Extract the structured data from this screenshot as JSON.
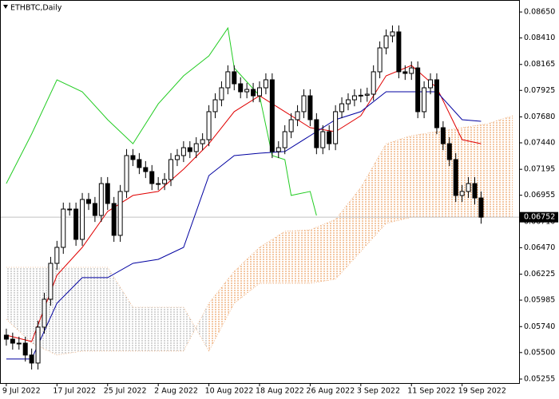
{
  "chart_data": {
    "type": "candlestick",
    "title": "ETHBTC,Daily",
    "x": [
      "2022-07-09",
      "2022-07-10",
      "2022-07-11",
      "2022-07-12",
      "2022-07-13",
      "2022-07-14",
      "2022-07-15",
      "2022-07-16",
      "2022-07-17",
      "2022-07-18",
      "2022-07-19",
      "2022-07-20",
      "2022-07-21",
      "2022-07-22",
      "2022-07-23",
      "2022-07-24",
      "2022-07-25",
      "2022-07-26",
      "2022-07-27",
      "2022-07-28",
      "2022-07-29",
      "2022-07-30",
      "2022-07-31",
      "2022-08-01",
      "2022-08-02",
      "2022-08-03",
      "2022-08-04",
      "2022-08-05",
      "2022-08-06",
      "2022-08-07",
      "2022-08-08",
      "2022-08-09",
      "2022-08-10",
      "2022-08-11",
      "2022-08-12",
      "2022-08-13",
      "2022-08-14",
      "2022-08-15",
      "2022-08-16",
      "2022-08-17",
      "2022-08-18",
      "2022-08-19",
      "2022-08-20",
      "2022-08-21",
      "2022-08-22",
      "2022-08-23",
      "2022-08-24",
      "2022-08-25",
      "2022-08-26",
      "2022-08-27",
      "2022-08-28",
      "2022-08-29",
      "2022-08-30",
      "2022-08-31",
      "2022-09-01",
      "2022-09-02",
      "2022-09-03",
      "2022-09-04",
      "2022-09-05",
      "2022-09-06",
      "2022-09-07",
      "2022-09-08",
      "2022-09-09",
      "2022-09-10",
      "2022-09-11",
      "2022-09-12",
      "2022-09-13",
      "2022-09-14",
      "2022-09-15",
      "2022-09-16",
      "2022-09-17",
      "2022-09-18",
      "2022-09-19",
      "2022-09-20",
      "2022-09-21",
      "2022-09-22"
    ],
    "open": [
      0.05661,
      0.05624,
      0.05587,
      0.05587,
      0.05477,
      0.05403,
      0.05735,
      0.05993,
      0.06325,
      0.06473,
      0.06827,
      0.06827,
      0.06547,
      0.06916,
      0.06879,
      0.06768,
      0.07063,
      0.06879,
      0.06584,
      0.0699,
      0.07322,
      0.07285,
      0.07211,
      0.07174,
      0.07063,
      0.07063,
      0.071,
      0.07285,
      0.07322,
      0.07395,
      0.07359,
      0.07432,
      0.07469,
      0.07728,
      0.07838,
      0.07949,
      0.08097,
      0.07986,
      0.07912,
      0.07934,
      0.07875,
      0.07949,
      0.08023,
      0.07359,
      0.07395,
      0.07543,
      0.07654,
      0.07728,
      0.07875,
      0.07654,
      0.07395,
      0.07543,
      0.07432,
      0.07728,
      0.07801,
      0.07838,
      0.07875,
      0.0788,
      0.0789,
      0.08097,
      0.08318,
      0.08429,
      0.08466,
      0.08097,
      0.08082,
      0.08133,
      0.07728,
      0.07949,
      0.08023,
      0.0758,
      0.07432,
      0.07285,
      0.06953,
      0.0699,
      0.07063,
      0.0693
    ],
    "high": [
      0.05721,
      0.05684,
      0.05647,
      0.05647,
      0.05537,
      0.05795,
      0.06053,
      0.06385,
      0.06533,
      0.06887,
      0.06887,
      0.06887,
      0.06976,
      0.06976,
      0.06939,
      0.07123,
      0.07123,
      0.06939,
      0.0705,
      0.07382,
      0.07382,
      0.07345,
      0.07271,
      0.07234,
      0.07123,
      0.0716,
      0.07345,
      0.07382,
      0.07455,
      0.07455,
      0.07492,
      0.07529,
      0.07788,
      0.07898,
      0.08009,
      0.08157,
      0.08157,
      0.08046,
      0.07994,
      0.07994,
      0.08009,
      0.08083,
      0.08083,
      0.07455,
      0.07603,
      0.07714,
      0.07788,
      0.07935,
      0.07935,
      0.07714,
      0.07603,
      0.07603,
      0.07788,
      0.07861,
      0.07898,
      0.07935,
      0.0794,
      0.0795,
      0.08157,
      0.08378,
      0.08489,
      0.08526,
      0.08526,
      0.08157,
      0.08193,
      0.08193,
      0.08009,
      0.08083,
      0.08083,
      0.0764,
      0.07492,
      0.07345,
      0.0705,
      0.07123,
      0.07123,
      0.0699
    ],
    "low": [
      0.05564,
      0.05527,
      0.05527,
      0.05417,
      0.05343,
      0.05343,
      0.05675,
      0.05933,
      0.06265,
      0.06413,
      0.06767,
      0.06487,
      0.06487,
      0.06819,
      0.06708,
      0.06708,
      0.06819,
      0.06524,
      0.06524,
      0.0693,
      0.07225,
      0.07151,
      0.07114,
      0.07003,
      0.07003,
      0.07003,
      0.0704,
      0.07225,
      0.07262,
      0.07299,
      0.07299,
      0.07372,
      0.07409,
      0.07668,
      0.07778,
      0.07889,
      0.07926,
      0.07852,
      0.07852,
      0.07815,
      0.07815,
      0.07889,
      0.07299,
      0.07299,
      0.07335,
      0.07483,
      0.07594,
      0.07668,
      0.07594,
      0.07335,
      0.07335,
      0.07372,
      0.07372,
      0.07668,
      0.07741,
      0.07778,
      0.07815,
      0.0782,
      0.0783,
      0.08037,
      0.08258,
      0.08369,
      0.08037,
      0.08022,
      0.08022,
      0.07668,
      0.07668,
      0.07889,
      0.0752,
      0.07372,
      0.07225,
      0.06893,
      0.06893,
      0.0693,
      0.0687,
      0.06692
    ],
    "close": [
      0.05624,
      0.05587,
      0.05587,
      0.05477,
      0.05403,
      0.05735,
      0.05993,
      0.06325,
      0.06473,
      0.06827,
      0.06827,
      0.06547,
      0.06916,
      0.06879,
      0.06768,
      0.07063,
      0.06879,
      0.06584,
      0.0699,
      0.07322,
      0.07285,
      0.07211,
      0.07174,
      0.07063,
      0.07063,
      0.071,
      0.07285,
      0.07322,
      0.07395,
      0.07359,
      0.07432,
      0.07469,
      0.07728,
      0.07838,
      0.07949,
      0.08097,
      0.07986,
      0.07912,
      0.07934,
      0.07875,
      0.07949,
      0.08023,
      0.07359,
      0.07395,
      0.07543,
      0.07654,
      0.07728,
      0.07875,
      0.07654,
      0.07395,
      0.07543,
      0.07432,
      0.07728,
      0.07801,
      0.07838,
      0.07875,
      0.0788,
      0.0789,
      0.08097,
      0.08318,
      0.08429,
      0.08466,
      0.08097,
      0.08082,
      0.08133,
      0.07728,
      0.07949,
      0.08023,
      0.0758,
      0.07432,
      0.07285,
      0.06953,
      0.0699,
      0.07063,
      0.0693,
      0.06752
    ],
    "up_color": "#ffffff",
    "down_color": "#000000",
    "lines": [
      {
        "color": "#e00000",
        "x": [
          "2022-07-09",
          "2022-07-13",
          "2022-07-17",
          "2022-07-21",
          "2022-07-25",
          "2022-07-29",
          "2022-08-02",
          "2022-08-06",
          "2022-08-10",
          "2022-08-14",
          "2022-08-18",
          "2022-08-22",
          "2022-08-26",
          "2022-08-30",
          "2022-09-03",
          "2022-09-07",
          "2022-09-11",
          "2022-09-15",
          "2022-09-19",
          "2022-09-22"
        ],
        "values": [
          0.05661,
          0.05602,
          0.06215,
          0.06473,
          0.06805,
          0.06953,
          0.0699,
          0.07196,
          0.07432,
          0.07728,
          0.07875,
          0.07728,
          0.0758,
          0.07543,
          0.07691,
          0.0806,
          0.08156,
          0.07949,
          0.07469,
          0.07432
        ]
      },
      {
        "color": "#0000a0",
        "x": [
          "2022-07-09",
          "2022-07-13",
          "2022-07-17",
          "2022-07-21",
          "2022-07-25",
          "2022-07-29",
          "2022-08-02",
          "2022-08-06",
          "2022-08-10",
          "2022-08-14",
          "2022-08-18",
          "2022-08-22",
          "2022-08-26",
          "2022-08-30",
          "2022-09-03",
          "2022-09-07",
          "2022-09-11",
          "2022-09-15",
          "2022-09-19",
          "2022-09-22"
        ],
        "values": [
          0.0544,
          0.0544,
          0.05956,
          0.06193,
          0.06193,
          0.06325,
          0.06362,
          0.06473,
          0.07137,
          0.07322,
          0.07344,
          0.07359,
          0.07506,
          0.07654,
          0.07728,
          0.07912,
          0.07912,
          0.07912,
          0.07654,
          0.07639
        ]
      },
      {
        "color": "#22cc22",
        "x": [
          "2022-07-09",
          "2022-07-13",
          "2022-07-17",
          "2022-07-21",
          "2022-07-25",
          "2022-07-29",
          "2022-08-02",
          "2022-08-06",
          "2022-08-10",
          "2022-08-13",
          "2022-08-14",
          "2022-08-18",
          "2022-08-20",
          "2022-08-22",
          "2022-08-23",
          "2022-08-26",
          "2022-08-27"
        ],
        "values": [
          0.07063,
          0.07521,
          0.08023,
          0.07912,
          0.07654,
          0.07432,
          0.07801,
          0.0806,
          0.08244,
          0.08502,
          0.08133,
          0.07875,
          0.07322,
          0.07285,
          0.06953,
          0.0699,
          0.06768
        ]
      }
    ],
    "cloud": {
      "x": [
        "2022-07-09",
        "2022-07-13",
        "2022-07-17",
        "2022-07-21",
        "2022-07-25",
        "2022-07-29",
        "2022-08-02",
        "2022-08-06",
        "2022-08-10",
        "2022-08-14",
        "2022-08-18",
        "2022-08-22",
        "2022-08-26",
        "2022-08-30",
        "2022-09-03",
        "2022-09-07",
        "2022-09-11",
        "2022-09-15",
        "2022-09-19",
        "2022-09-23",
        "2022-09-27"
      ],
      "span_a": [
        0.05809,
        0.05587,
        0.05477,
        0.05514,
        0.05514,
        0.05514,
        0.05514,
        0.05514,
        0.05956,
        0.06252,
        0.06473,
        0.06621,
        0.06635,
        0.06731,
        0.07026,
        0.07432,
        0.07506,
        0.07543,
        0.0758,
        0.07617,
        0.07691
      ],
      "span_b": [
        0.06288,
        0.06288,
        0.06288,
        0.06288,
        0.06288,
        0.05919,
        0.05919,
        0.05919,
        0.05514,
        0.05956,
        0.06141,
        0.06141,
        0.06141,
        0.06178,
        0.06436,
        0.06694,
        0.06752,
        0.06752,
        0.06752,
        0.06752,
        0.06752
      ],
      "up_color": "#e8904a",
      "down_color": "#a8a8a8"
    },
    "last_price": {
      "value": 0.06752,
      "label": "0.06752"
    },
    "xlim": [
      "2022-07-08",
      "2022-09-28"
    ],
    "xticks": [
      {
        "value": "2022-07-09",
        "label": "9 Jul 2022"
      },
      {
        "value": "2022-07-17",
        "label": "17 Jul 2022"
      },
      {
        "value": "2022-07-25",
        "label": "25 Jul 2022"
      },
      {
        "value": "2022-08-02",
        "label": "2 Aug 2022"
      },
      {
        "value": "2022-08-10",
        "label": "10 Aug 2022"
      },
      {
        "value": "2022-08-18",
        "label": "18 Aug 2022"
      },
      {
        "value": "2022-08-26",
        "label": "26 Aug 2022"
      },
      {
        "value": "2022-09-03",
        "label": "3 Sep 2022"
      },
      {
        "value": "2022-09-11",
        "label": "11 Sep 2022"
      },
      {
        "value": "2022-09-19",
        "label": "19 Sep 2022"
      }
    ],
    "ylim": [
      0.05218,
      0.08761
    ],
    "yticks": [
      {
        "value": 0.05255,
        "label": "0.05255"
      },
      {
        "value": 0.055,
        "label": "0.05500"
      },
      {
        "value": 0.0574,
        "label": "0.05740"
      },
      {
        "value": 0.05985,
        "label": "0.05985"
      },
      {
        "value": 0.06225,
        "label": "0.06225"
      },
      {
        "value": 0.0647,
        "label": "0.06470"
      },
      {
        "value": 0.0671,
        "label": "0.06710"
      },
      {
        "value": 0.06955,
        "label": "0.06955"
      },
      {
        "value": 0.07195,
        "label": "0.07195"
      },
      {
        "value": 0.0744,
        "label": "0.07440"
      },
      {
        "value": 0.0768,
        "label": "0.07680"
      },
      {
        "value": 0.07925,
        "label": "0.07925"
      },
      {
        "value": 0.08165,
        "label": "0.08165"
      },
      {
        "value": 0.0841,
        "label": "0.08410"
      },
      {
        "value": 0.0865,
        "label": "0.08650"
      }
    ]
  }
}
